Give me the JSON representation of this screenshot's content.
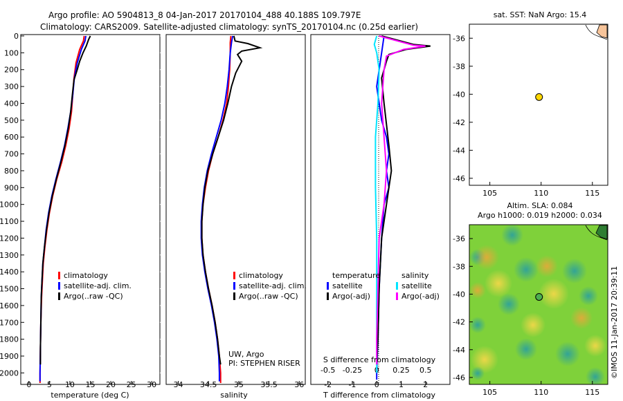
{
  "header": {
    "line1": "Argo profile: AO 5904813_8 04-Jan-2017 20170104_488 40.188S 109.797E",
    "line2": "Climatology: CARS2009. Satellite-adjusted climatology: synTS_20170104.nc (0.25d earlier)"
  },
  "watermark": "©IMOS 11-Jan-2017 20:39:11",
  "colors": {
    "climatology": "#ff0000",
    "satellite": "#0000ff",
    "argo": "#000000",
    "sal_satellite": "#00e5ff",
    "sal_argo": "#ff00ff",
    "sst_marker": "#ffd700",
    "land": "#f7c49a"
  },
  "chart_data": [
    {
      "type": "line",
      "id": "temperature",
      "xlabel": "temperature (deg C)",
      "ylim": [
        0,
        2060
      ],
      "y_reversed": true,
      "yticks": [
        0,
        100,
        200,
        300,
        400,
        500,
        600,
        700,
        800,
        900,
        1000,
        1100,
        1200,
        1300,
        1400,
        1500,
        1600,
        1700,
        1800,
        1900,
        2000
      ],
      "xlim": [
        -2,
        32
      ],
      "xticks": [
        0,
        5,
        10,
        15,
        20,
        25,
        30
      ],
      "legend": [
        "climatology",
        "satellite-adj. clim.",
        "Argo(..raw -QC)"
      ],
      "series": [
        {
          "name": "climatology",
          "color": "#ff0000",
          "points": [
            [
              13.5,
              0
            ],
            [
              13.3,
              30
            ],
            [
              12.4,
              80
            ],
            [
              11.5,
              160
            ],
            [
              11.0,
              250
            ],
            [
              10.7,
              350
            ],
            [
              10.4,
              450
            ],
            [
              9.8,
              550
            ],
            [
              9.0,
              650
            ],
            [
              8.0,
              750
            ],
            [
              6.8,
              850
            ],
            [
              5.8,
              950
            ],
            [
              5.0,
              1050
            ],
            [
              4.4,
              1150
            ],
            [
              3.9,
              1250
            ],
            [
              3.5,
              1350
            ],
            [
              3.3,
              1450
            ],
            [
              3.1,
              1550
            ],
            [
              2.9,
              1700
            ],
            [
              2.8,
              1850
            ],
            [
              2.7,
              2000
            ],
            [
              2.7,
              2060
            ]
          ]
        },
        {
          "name": "satellite-adj. clim.",
          "color": "#0000ff",
          "points": [
            [
              13.9,
              0
            ],
            [
              13.7,
              30
            ],
            [
              12.8,
              80
            ],
            [
              11.8,
              160
            ],
            [
              11.1,
              250
            ],
            [
              10.7,
              350
            ],
            [
              10.2,
              450
            ],
            [
              9.5,
              550
            ],
            [
              8.7,
              650
            ],
            [
              7.7,
              750
            ],
            [
              6.6,
              850
            ],
            [
              5.6,
              950
            ],
            [
              4.8,
              1050
            ],
            [
              4.2,
              1150
            ],
            [
              3.8,
              1250
            ],
            [
              3.4,
              1350
            ],
            [
              3.2,
              1450
            ],
            [
              3.0,
              1550
            ],
            [
              2.9,
              1700
            ],
            [
              2.8,
              1850
            ],
            [
              2.7,
              2000
            ],
            [
              2.7,
              2050
            ]
          ]
        },
        {
          "name": "Argo(..raw -QC)",
          "color": "#000000",
          "points": [
            [
              15.0,
              0
            ],
            [
              14.6,
              20
            ],
            [
              14.0,
              60
            ],
            [
              13.2,
              100
            ],
            [
              12.4,
              150
            ],
            [
              11.8,
              200
            ],
            [
              11.0,
              260
            ],
            [
              10.6,
              350
            ],
            [
              10.2,
              450
            ],
            [
              9.6,
              550
            ],
            [
              8.8,
              650
            ],
            [
              7.8,
              750
            ],
            [
              6.7,
              850
            ],
            [
              5.7,
              950
            ],
            [
              4.9,
              1050
            ],
            [
              4.3,
              1150
            ],
            [
              3.8,
              1250
            ],
            [
              3.4,
              1350
            ],
            [
              3.2,
              1450
            ],
            [
              3.0,
              1550
            ],
            [
              2.9,
              1700
            ],
            [
              2.8,
              1850
            ],
            [
              2.8,
              1950
            ]
          ]
        }
      ]
    },
    {
      "type": "line",
      "id": "salinity",
      "xlabel": "salinity",
      "ylim": [
        0,
        2060
      ],
      "y_reversed": true,
      "xlim": [
        33.8,
        36.1
      ],
      "xticks": [
        34,
        34.5,
        35,
        35.5,
        36
      ],
      "xticklabels": [
        "34",
        "34.5",
        "35",
        "35.5",
        "36"
      ],
      "legend": [
        "climatology",
        "satellite-adj. clim.",
        "Argo(..raw -QC)"
      ],
      "annotation": [
        "UW, Argo",
        "PI: STEPHEN RISER"
      ],
      "series": [
        {
          "name": "climatology",
          "color": "#ff0000",
          "points": [
            [
              34.87,
              0
            ],
            [
              34.86,
              40
            ],
            [
              34.86,
              100
            ],
            [
              34.85,
              200
            ],
            [
              34.83,
              300
            ],
            [
              34.8,
              400
            ],
            [
              34.74,
              500
            ],
            [
              34.66,
              600
            ],
            [
              34.57,
              700
            ],
            [
              34.5,
              800
            ],
            [
              34.45,
              900
            ],
            [
              34.41,
              1000
            ],
            [
              34.39,
              1100
            ],
            [
              34.39,
              1200
            ],
            [
              34.41,
              1300
            ],
            [
              34.45,
              1400
            ],
            [
              34.5,
              1500
            ],
            [
              34.56,
              1600
            ],
            [
              34.61,
              1700
            ],
            [
              34.65,
              1800
            ],
            [
              34.68,
              1900
            ],
            [
              34.7,
              2000
            ],
            [
              34.7,
              2060
            ]
          ]
        },
        {
          "name": "satellite-adj. clim.",
          "color": "#0000ff",
          "points": [
            [
              34.9,
              0
            ],
            [
              34.88,
              40
            ],
            [
              34.86,
              100
            ],
            [
              34.84,
              200
            ],
            [
              34.81,
              300
            ],
            [
              34.77,
              400
            ],
            [
              34.71,
              500
            ],
            [
              34.63,
              600
            ],
            [
              34.55,
              700
            ],
            [
              34.48,
              800
            ],
            [
              34.43,
              900
            ],
            [
              34.4,
              1000
            ],
            [
              34.38,
              1100
            ],
            [
              34.38,
              1200
            ],
            [
              34.4,
              1300
            ],
            [
              34.44,
              1400
            ],
            [
              34.49,
              1500
            ],
            [
              34.55,
              1600
            ],
            [
              34.6,
              1700
            ],
            [
              34.64,
              1800
            ],
            [
              34.67,
              1900
            ],
            [
              34.68,
              2000
            ],
            [
              34.68,
              2050
            ]
          ]
        },
        {
          "name": "Argo(..raw -QC)",
          "color": "#000000",
          "points": [
            [
              34.92,
              0
            ],
            [
              34.94,
              30
            ],
            [
              35.15,
              45
            ],
            [
              35.35,
              70
            ],
            [
              35.05,
              90
            ],
            [
              34.98,
              110
            ],
            [
              35.05,
              150
            ],
            [
              34.95,
              220
            ],
            [
              34.88,
              300
            ],
            [
              34.82,
              400
            ],
            [
              34.75,
              500
            ],
            [
              34.66,
              600
            ],
            [
              34.57,
              700
            ],
            [
              34.49,
              800
            ],
            [
              34.44,
              900
            ],
            [
              34.41,
              1000
            ],
            [
              34.39,
              1100
            ],
            [
              34.39,
              1200
            ],
            [
              34.41,
              1300
            ],
            [
              34.45,
              1400
            ],
            [
              34.5,
              1500
            ],
            [
              34.56,
              1600
            ],
            [
              34.61,
              1700
            ],
            [
              34.65,
              1800
            ],
            [
              34.68,
              1900
            ],
            [
              34.7,
              1950
            ]
          ]
        }
      ]
    },
    {
      "type": "line",
      "id": "differences",
      "xlabel": "T difference from climatology",
      "xlabel2": "S difference from climatology",
      "ylim": [
        0,
        2060
      ],
      "y_reversed": true,
      "xlim": [
        -2.7,
        3.0
      ],
      "xticks": [
        -2,
        -1,
        0,
        1,
        2
      ],
      "xticks2": [
        -0.5,
        -0.25,
        0,
        0.25,
        0.5
      ],
      "xticklabels2": [
        "-0.5",
        "-0.25",
        "0",
        "0.25",
        "0.5"
      ],
      "legend": [
        "temperature",
        "satellite",
        "Argo(-adj)",
        "salinity",
        "satellite",
        "Argo(-adj)"
      ],
      "series": [
        {
          "name": "satellite",
          "group": "temperature",
          "color": "#0000ff",
          "points": [
            [
              0.3,
              0
            ],
            [
              0.2,
              100
            ],
            [
              0.0,
              300
            ],
            [
              0.2,
              500
            ],
            [
              0.4,
              600
            ],
            [
              0.5,
              700
            ],
            [
              0.4,
              800
            ],
            [
              0.5,
              900
            ],
            [
              0.3,
              1000
            ],
            [
              0.2,
              1200
            ],
            [
              0.1,
              1500
            ],
            [
              0.05,
              1800
            ],
            [
              0.0,
              2000
            ],
            [
              0.0,
              2040
            ]
          ]
        },
        {
          "name": "Argo(-adj)",
          "group": "temperature",
          "color": "#000000",
          "points": [
            [
              0.2,
              0
            ],
            [
              1.5,
              50
            ],
            [
              2.2,
              60
            ],
            [
              1.2,
              80
            ],
            [
              0.5,
              110
            ],
            [
              0.4,
              150
            ],
            [
              0.2,
              250
            ],
            [
              0.3,
              400
            ],
            [
              0.5,
              650
            ],
            [
              0.6,
              800
            ],
            [
              0.5,
              900
            ],
            [
              0.4,
              1000
            ],
            [
              0.2,
              1200
            ],
            [
              0.1,
              1500
            ],
            [
              0.05,
              1800
            ],
            [
              0.0,
              1950
            ]
          ]
        },
        {
          "name": "satellite",
          "group": "salinity",
          "color": "#00e5ff",
          "points": [
            [
              0.0,
              0
            ],
            [
              -0.1,
              50
            ],
            [
              0.0,
              100
            ],
            [
              0.1,
              200
            ],
            [
              0.05,
              400
            ],
            [
              -0.05,
              600
            ],
            [
              -0.05,
              900
            ],
            [
              0.0,
              1200
            ],
            [
              0.0,
              1500
            ],
            [
              0.0,
              1800
            ],
            [
              0.0,
              2000
            ]
          ]
        },
        {
          "name": "Argo(-adj)",
          "group": "salinity",
          "color": "#ff00ff",
          "points": [
            [
              0.1,
              0
            ],
            [
              1.5,
              55
            ],
            [
              2.0,
              60
            ],
            [
              1.1,
              80
            ],
            [
              0.4,
              120
            ],
            [
              0.3,
              200
            ],
            [
              0.2,
              400
            ],
            [
              0.3,
              600
            ],
            [
              0.4,
              800
            ],
            [
              0.3,
              1000
            ],
            [
              0.1,
              1200
            ],
            [
              0.05,
              1500
            ],
            [
              0.0,
              1800
            ],
            [
              0.0,
              1950
            ]
          ]
        }
      ]
    },
    {
      "type": "scatter",
      "id": "sst_map",
      "title": "sat. SST: NaN  Argo: 15.4",
      "xlim": [
        103,
        116.5
      ],
      "ylim": [
        -46.5,
        -35
      ],
      "xticks": [
        105,
        110,
        115
      ],
      "yticks": [
        -36,
        -38,
        -40,
        -42,
        -44,
        -46
      ],
      "points": [
        {
          "x": 109.8,
          "y": -40.2
        }
      ]
    },
    {
      "type": "heatmap",
      "id": "sla_map",
      "title": "Altim. SLA: 0.084",
      "subtitle": "Argo h1000: 0.019 h2000: 0.034",
      "xlim": [
        103,
        116.5
      ],
      "ylim": [
        -46.5,
        -35
      ],
      "xticks": [
        105,
        110,
        115
      ],
      "yticks": [
        -36,
        -38,
        -40,
        -42,
        -44,
        -46
      ],
      "points": [
        {
          "x": 109.8,
          "y": -40.2
        }
      ]
    }
  ]
}
